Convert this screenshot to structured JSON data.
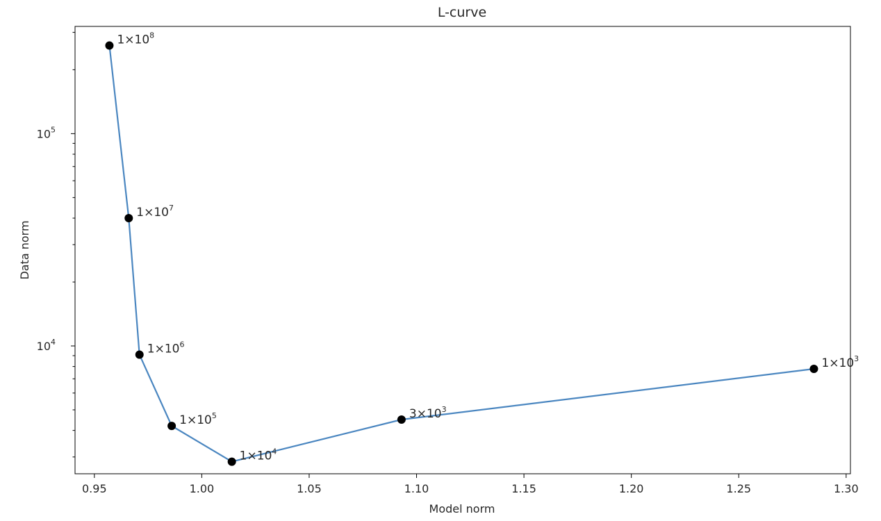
{
  "chart_data": {
    "type": "line",
    "title": "L-curve",
    "xlabel": "Model norm",
    "ylabel": "Data norm",
    "xlim": [
      0.941,
      1.302
    ],
    "ylim": [
      2500,
      320000
    ],
    "yscale": "log",
    "x_ticks": [
      {
        "value": 0.95,
        "label": "0.95"
      },
      {
        "value": 1.0,
        "label": "1.00"
      },
      {
        "value": 1.05,
        "label": "1.05"
      },
      {
        "value": 1.1,
        "label": "1.10"
      },
      {
        "value": 1.15,
        "label": "1.15"
      },
      {
        "value": 1.2,
        "label": "1.20"
      },
      {
        "value": 1.25,
        "label": "1.25"
      },
      {
        "value": 1.3,
        "label": "1.30"
      }
    ],
    "y_ticks": [
      {
        "value": 10000,
        "base": "10",
        "exp": "4"
      },
      {
        "value": 100000,
        "base": "10",
        "exp": "5"
      }
    ],
    "line_color": "#4a86c0",
    "marker_color": "#000000",
    "grid": false,
    "points": [
      {
        "x": 0.957,
        "y": 260000,
        "coef": "1",
        "exp": "8"
      },
      {
        "x": 0.966,
        "y": 40000,
        "coef": "1",
        "exp": "7"
      },
      {
        "x": 0.971,
        "y": 9100,
        "coef": "1",
        "exp": "6"
      },
      {
        "x": 0.986,
        "y": 4200,
        "coef": "1",
        "exp": "5"
      },
      {
        "x": 1.014,
        "y": 2850,
        "coef": "1",
        "exp": "4"
      },
      {
        "x": 1.093,
        "y": 4500,
        "coef": "3",
        "exp": "3"
      },
      {
        "x": 1.285,
        "y": 7800,
        "coef": "1",
        "exp": "3"
      }
    ]
  }
}
